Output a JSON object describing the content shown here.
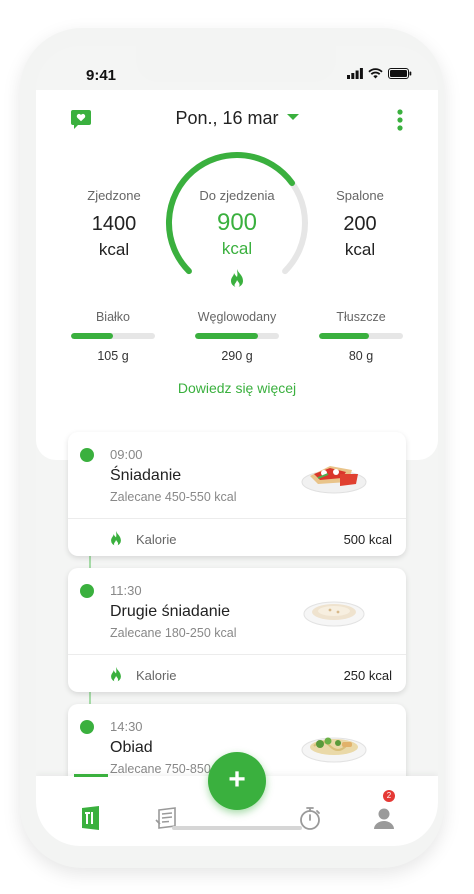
{
  "status": {
    "time": "9:41"
  },
  "header": {
    "date": "Pon., 16 mar"
  },
  "summary": {
    "eaten": {
      "label": "Zjedzone",
      "value": "1400",
      "unit": "kcal"
    },
    "remaining": {
      "label": "Do zjedzenia",
      "value": "900",
      "unit": "kcal",
      "progress": 0.7
    },
    "burned": {
      "label": "Spalone",
      "value": "200",
      "unit": "kcal"
    }
  },
  "macros": [
    {
      "label": "Białko",
      "value": "105 g",
      "progress": 0.5
    },
    {
      "label": "Węglowodany",
      "value": "290 g",
      "progress": 0.75
    },
    {
      "label": "Tłuszcze",
      "value": "80 g",
      "progress": 0.6
    }
  ],
  "learn_more": "Dowiedz się więcej",
  "meals": [
    {
      "time": "09:00",
      "name": "Śniadanie",
      "recommended": "Zalecane 450-550 kcal",
      "calories_label": "Kalorie",
      "calories": "500 kcal",
      "image": "sandwich-image"
    },
    {
      "time": "11:30",
      "name": "Drugie śniadanie",
      "recommended": "Zalecane 180-250 kcal",
      "calories_label": "Kalorie",
      "calories": "250 kcal",
      "image": "porridge-image"
    },
    {
      "time": "14:30",
      "name": "Obiad",
      "recommended": "Zalecane 750-850",
      "image": "pasta-image"
    }
  ],
  "nav": {
    "items": [
      "diet-icon",
      "shopping-list-icon",
      "add-icon",
      "timer-icon",
      "profile-icon"
    ],
    "badge": "2"
  },
  "colors": {
    "accent": "#3ab03e",
    "track": "#e6e6e6"
  }
}
